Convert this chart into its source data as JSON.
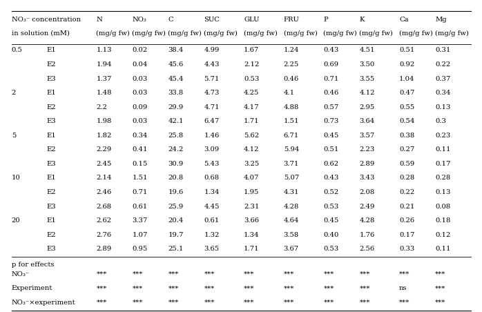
{
  "title": "",
  "columns": [
    "NO₃⁻ concentration\nin solution (mM)",
    "N",
    "NO₃",
    "C",
    "SUC",
    "GLU",
    "FRU",
    "P",
    "K",
    "Ca",
    "Mg"
  ],
  "col_units": [
    "",
    "(mg/g fw)",
    "(mg/g fw)",
    "(mg/g fw)",
    "(mg/g fw)",
    "(mg/g fw)",
    "(mg/g fw)",
    "(mg/g fw)",
    "(mg/g fw)",
    "(mg/g fw)",
    "(mg/g fw)"
  ],
  "rows": [
    [
      "0.5",
      "E1",
      "1.13",
      "0.02",
      "38.4",
      "4.99",
      "1.67",
      "1.24",
      "0.43",
      "4.51",
      "0.51",
      "0.31"
    ],
    [
      "",
      "E2",
      "1.94",
      "0.04",
      "45.6",
      "4.43",
      "2.12",
      "2.25",
      "0.69",
      "3.50",
      "0.92",
      "0.22"
    ],
    [
      "",
      "E3",
      "1.37",
      "0.03",
      "45.4",
      "5.71",
      "0.53",
      "0.46",
      "0.71",
      "3.55",
      "1.04",
      "0.37"
    ],
    [
      "2",
      "E1",
      "1.48",
      "0.03",
      "33.8",
      "4.73",
      "4.25",
      "4.1",
      "0.46",
      "4.12",
      "0.47",
      "0.34"
    ],
    [
      "",
      "E2",
      "2.2",
      "0.09",
      "29.9",
      "4.71",
      "4.17",
      "4.88",
      "0.57",
      "2.95",
      "0.55",
      "0.13"
    ],
    [
      "",
      "E3",
      "1.98",
      "0.03",
      "42.1",
      "6.47",
      "1.71",
      "1.51",
      "0.73",
      "3.64",
      "0.54",
      "0.3"
    ],
    [
      "5",
      "E1",
      "1.82",
      "0.34",
      "25.8",
      "1.46",
      "5.62",
      "6.71",
      "0.45",
      "3.57",
      "0.38",
      "0.23"
    ],
    [
      "",
      "E2",
      "2.29",
      "0.41",
      "24.2",
      "3.09",
      "4.12",
      "5.94",
      "0.51",
      "2.23",
      "0.27",
      "0.11"
    ],
    [
      "",
      "E3",
      "2.45",
      "0.15",
      "30.9",
      "5.43",
      "3.25",
      "3.71",
      "0.62",
      "2.89",
      "0.59",
      "0.17"
    ],
    [
      "10",
      "E1",
      "2.14",
      "1.51",
      "20.8",
      "0.68",
      "4.07",
      "5.07",
      "0.43",
      "3.43",
      "0.28",
      "0.28"
    ],
    [
      "",
      "E2",
      "2.46",
      "0.71",
      "19.6",
      "1.34",
      "1.95",
      "4.31",
      "0.52",
      "2.08",
      "0.22",
      "0.13"
    ],
    [
      "",
      "E3",
      "2.68",
      "0.61",
      "25.9",
      "4.45",
      "2.31",
      "4.28",
      "0.53",
      "2.49",
      "0.21",
      "0.08"
    ],
    [
      "20",
      "E1",
      "2.62",
      "3.37",
      "20.4",
      "0.61",
      "3.66",
      "4.64",
      "0.45",
      "4.28",
      "0.26",
      "0.18"
    ],
    [
      "",
      "E2",
      "2.76",
      "1.07",
      "19.7",
      "1.32",
      "1.34",
      "3.58",
      "0.40",
      "1.76",
      "0.17",
      "0.12"
    ],
    [
      "",
      "E3",
      "2.89",
      "0.95",
      "25.1",
      "3.65",
      "1.71",
      "3.67",
      "0.53",
      "2.56",
      "0.33",
      "0.11"
    ]
  ],
  "footer_label": "p for effects",
  "stats_rows": [
    [
      "NO₃⁻",
      "",
      "***",
      "***",
      "***",
      "***",
      "***",
      "***",
      "***",
      "***",
      "***",
      "***"
    ],
    [
      "Experiment",
      "",
      "***",
      "***",
      "***",
      "***",
      "***",
      "***",
      "***",
      "***",
      "ns",
      "***"
    ],
    [
      "NO₃⁻×experiment",
      "",
      "***",
      "***",
      "***",
      "***",
      "***",
      "***",
      "***",
      "***",
      "***",
      "***"
    ]
  ],
  "bg_color": "#ffffff",
  "text_color": "#000000",
  "font_size": 7.2,
  "header_font_size": 7.2
}
